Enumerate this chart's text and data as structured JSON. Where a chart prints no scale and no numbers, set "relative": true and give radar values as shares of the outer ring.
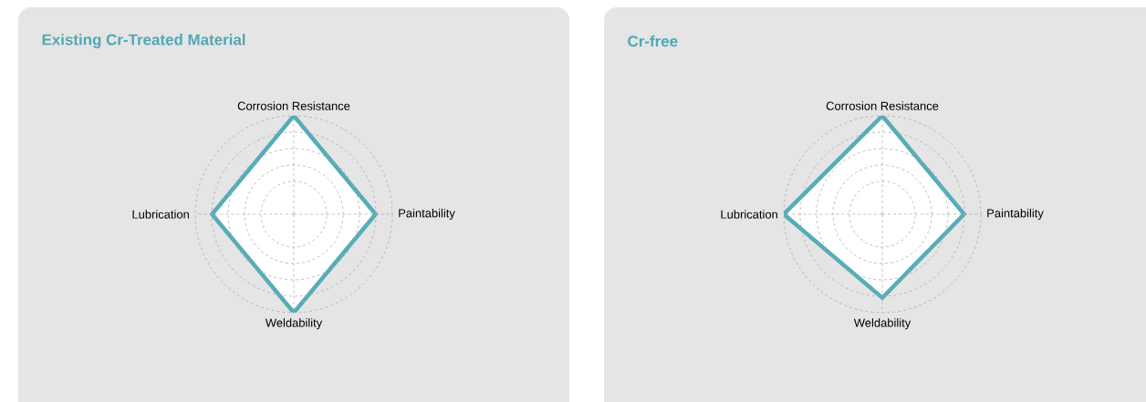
{
  "chart_data": [
    {
      "type": "radar",
      "title": "Existing Cr-Treated Material",
      "categories": [
        "Corrosion Resistance",
        "Paintability",
        "Weldability",
        "Lubrication"
      ],
      "relative": true,
      "grid": true,
      "series": [
        {
          "color": "#55adb8",
          "values": [
            1,
            0.83,
            1,
            0.83
          ]
        }
      ]
    },
    {
      "type": "radar",
      "title": "Cr-free",
      "categories": [
        "Corrosion Resistance",
        "Paintability",
        "Weldability",
        "Lubrication"
      ],
      "relative": true,
      "grid": true,
      "series": [
        {
          "color": "#55adb8",
          "values": [
            1,
            0.83,
            0.85,
            1
          ]
        }
      ]
    }
  ]
}
